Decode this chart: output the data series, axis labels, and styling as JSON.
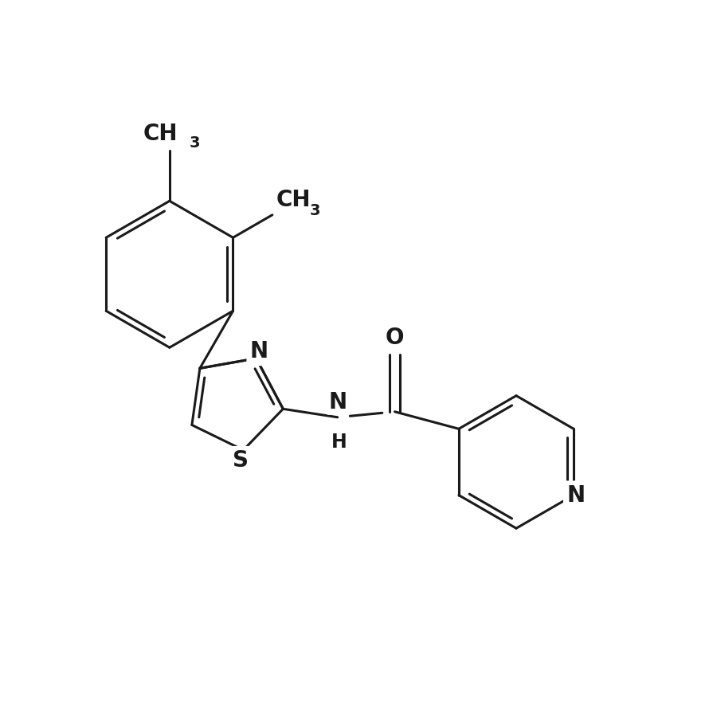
{
  "background_color": "#ffffff",
  "line_color": "#1a1a1a",
  "line_width": 2.2,
  "font_size_large": 20,
  "font_size_small": 17,
  "figsize": [
    8.9,
    8.9
  ],
  "dpi": 100,
  "xlim": [
    0,
    10
  ],
  "ylim": [
    0,
    10
  ]
}
